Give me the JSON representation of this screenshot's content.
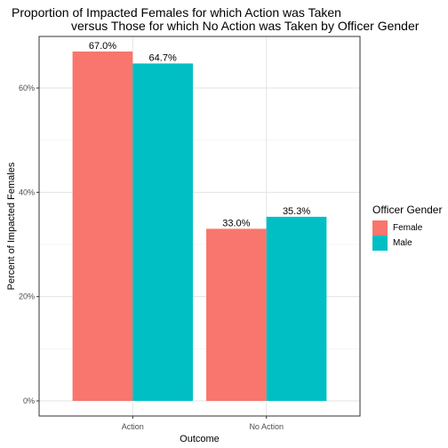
{
  "chart_data": {
    "type": "bar",
    "title": "Proportion of Impacted Females for which Action was Taken",
    "subtitle": "versus Those for which No Action was Taken by Officer Gender",
    "xlabel": "Outcome",
    "ylabel": "Percent of Impacted Females",
    "categories": [
      "Action",
      "No Action"
    ],
    "series": [
      {
        "name": "Female",
        "color": "#F8766D",
        "values": [
          0.67,
          0.33
        ],
        "labels": [
          "67.0%",
          "33.0%"
        ]
      },
      {
        "name": "Male",
        "color": "#00BFC4",
        "values": [
          0.647,
          0.353
        ],
        "labels": [
          "64.7%",
          "35.3%"
        ]
      }
    ],
    "ylim": [
      0,
      0.7
    ],
    "yticks": [
      0,
      0.2,
      0.4,
      0.6
    ],
    "ytick_labels": [
      "0%",
      "20%",
      "40%",
      "60%"
    ],
    "grid": true,
    "legend": {
      "title": "Officer Gender",
      "position": "right",
      "entries": [
        "Female",
        "Male"
      ]
    }
  }
}
